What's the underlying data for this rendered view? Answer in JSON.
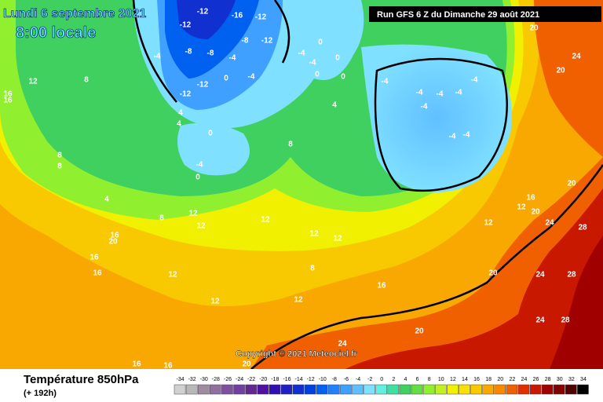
{
  "header": {
    "date": "Lundi 6 septembre 2021",
    "time": "8:00 locale",
    "run": "Run GFS 6 Z du Dimanche 29 août 2021"
  },
  "copyright": "Copyright © 2021 Meteociel.fr",
  "footer": {
    "title": "Température 850hPa",
    "subtitle": "(+ 192h)"
  },
  "legend": {
    "ticks": [
      -34,
      -32,
      -30,
      -28,
      -26,
      -24,
      -22,
      -20,
      -18,
      -16,
      -14,
      -12,
      -10,
      -8,
      -6,
      -4,
      -2,
      0,
      2,
      4,
      6,
      8,
      10,
      12,
      14,
      16,
      18,
      20,
      22,
      24,
      26,
      28,
      30,
      32,
      34
    ],
    "colors": [
      "#d0d0d0",
      "#b8b8b8",
      "#a08ca0",
      "#9070a0",
      "#8050a0",
      "#7040a0",
      "#602890",
      "#5010a0",
      "#3010b0",
      "#2020c0",
      "#1030d0",
      "#0040e0",
      "#0060f0",
      "#2080ff",
      "#40a0ff",
      "#60c0ff",
      "#80e0ff",
      "#60f0e0",
      "#40e0a0",
      "#40d060",
      "#60e040",
      "#90f030",
      "#c0f020",
      "#f0f000",
      "#f8e000",
      "#f8c800",
      "#f8a800",
      "#f88800",
      "#f06000",
      "#e03000",
      "#c81800",
      "#a00000",
      "#800000",
      "#500000",
      "#000000"
    ]
  },
  "map_labels": [
    -12,
    -12,
    -16,
    -12,
    -8,
    -8,
    -12,
    -12,
    -8,
    -12,
    -4,
    4,
    4,
    -4,
    0,
    -4,
    -4,
    0,
    0,
    -4,
    0,
    0,
    4,
    -4,
    -4,
    -4,
    -4,
    -4,
    -4,
    -4,
    -4,
    12,
    16,
    16,
    8,
    8,
    8,
    4,
    12,
    12,
    8,
    16,
    16,
    16,
    20,
    12,
    12,
    16,
    20,
    24,
    28,
    20,
    24,
    24,
    28,
    24,
    28,
    20,
    20,
    20,
    24,
    16,
    16,
    20,
    12,
    12,
    8,
    0,
    -4,
    0,
    12,
    12,
    8,
    16,
    12,
    20,
    12
  ]
}
